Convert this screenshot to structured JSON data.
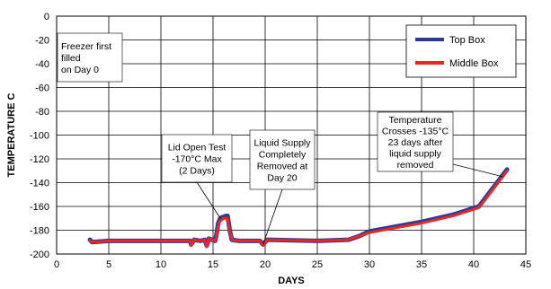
{
  "chart_data": {
    "type": "line",
    "title": "",
    "xlabel": "DAYS",
    "ylabel": "TEMPERATURE C",
    "xlim": [
      0,
      45
    ],
    "ylim": [
      -200,
      0
    ],
    "x_ticks": [
      0,
      5,
      10,
      15,
      20,
      25,
      30,
      35,
      40,
      45
    ],
    "y_ticks": [
      0,
      -20,
      -40,
      -60,
      -80,
      -100,
      -120,
      -140,
      -160,
      -180,
      -200
    ],
    "grid": true,
    "legend_position": "top-right",
    "series": [
      {
        "name": "Top Box",
        "color": "#2b3a8f",
        "x": [
          3.2,
          3.4,
          5,
          10,
          12.8,
          12.9,
          13.2,
          13.8,
          14.2,
          14.4,
          14.6,
          15.2,
          15.3,
          15.5,
          15.7,
          15.9,
          16.0,
          16.2,
          16.4,
          16.6,
          16.8,
          17.5,
          19.5,
          19.8,
          20.2,
          25,
          28,
          29,
          30,
          35,
          38,
          40.5,
          43.2
        ],
        "y": [
          -188,
          -190,
          -189,
          -189,
          -189,
          -192,
          -188,
          -189,
          -188,
          -193,
          -187,
          -189,
          -185,
          -174,
          -170,
          -169,
          -169,
          -168,
          -168,
          -180,
          -188,
          -189,
          -189,
          -192,
          -188,
          -189,
          -188,
          -185,
          -181,
          -173,
          -167,
          -160,
          -129
        ]
      },
      {
        "name": "Middle Box",
        "color": "#e8272a",
        "x": [
          3.2,
          3.4,
          5,
          10,
          12.8,
          12.9,
          13.2,
          13.8,
          14.2,
          14.4,
          14.6,
          15.2,
          15.3,
          15.5,
          15.7,
          15.9,
          16.0,
          16.2,
          16.4,
          16.6,
          16.8,
          17.5,
          19.5,
          19.8,
          20.2,
          25,
          28,
          29,
          30,
          35,
          38,
          40.5,
          43.2
        ],
        "y": [
          -189,
          -190,
          -189,
          -189,
          -189,
          -193,
          -188,
          -189,
          -188,
          -194,
          -187,
          -189,
          -186,
          -176,
          -172,
          -171,
          -170,
          -170,
          -170,
          -181,
          -188,
          -189,
          -189,
          -193,
          -188,
          -189,
          -188,
          -185,
          -182,
          -174,
          -168,
          -161,
          -130
        ]
      }
    ],
    "annotations": [
      {
        "lines": [
          "Freezer first",
          "filled",
          "on Day 0"
        ]
      },
      {
        "lines": [
          "Lid Open Test",
          "-170°C Max",
          "(2 Days)"
        ]
      },
      {
        "lines": [
          "Liquid Supply",
          "Completely",
          "Removed at",
          "Day 20"
        ]
      },
      {
        "lines": [
          "Temperature",
          "Crosses -135°C",
          "23 days after",
          "liquid supply",
          "removed"
        ]
      }
    ]
  }
}
